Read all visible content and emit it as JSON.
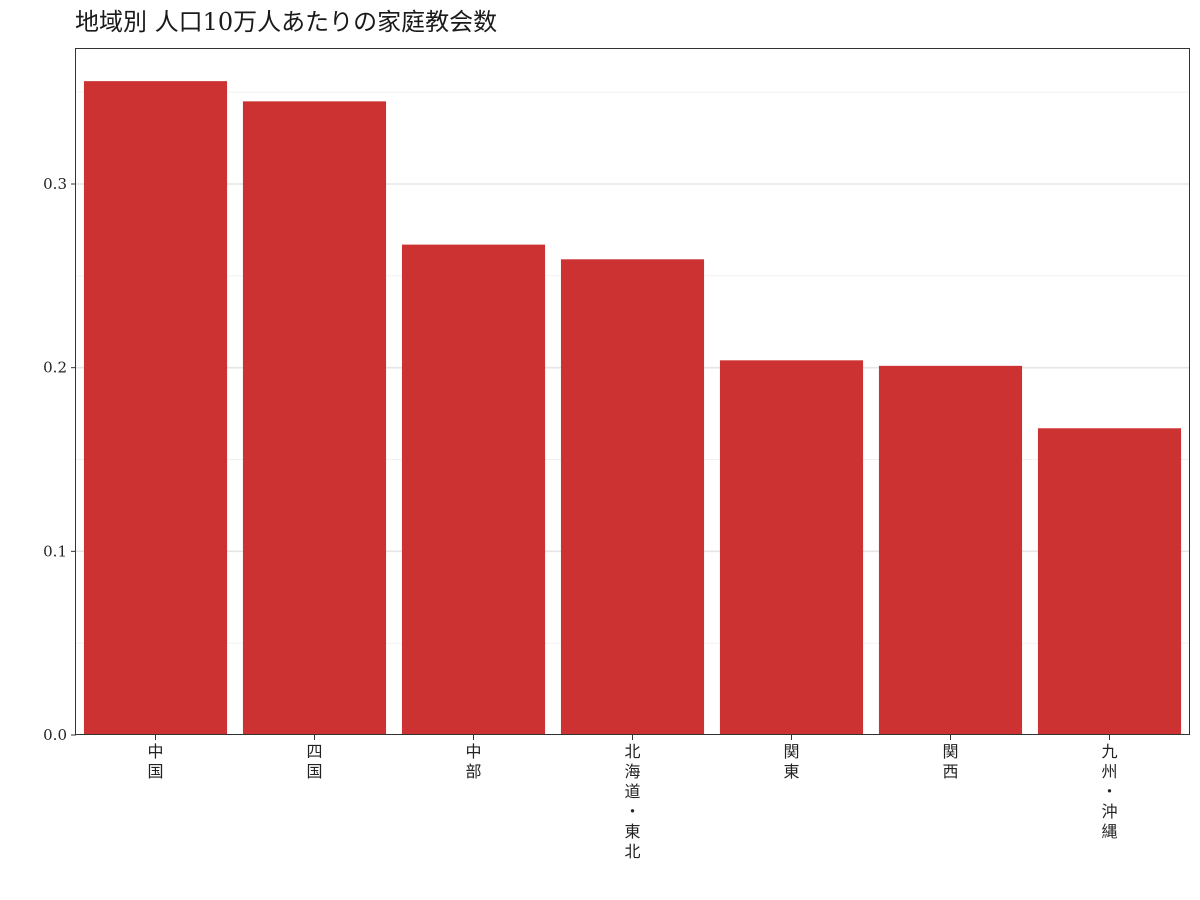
{
  "chart_data": {
    "type": "bar",
    "title": "地域別 人口10万人あたりの家庭教会数",
    "xlabel": "",
    "ylabel": "",
    "categories": [
      "中国",
      "四国",
      "中部",
      "北海道・東北",
      "関東",
      "関西",
      "九州・沖縄"
    ],
    "values": [
      0.356,
      0.345,
      0.267,
      0.259,
      0.204,
      0.201,
      0.167
    ],
    "ylim": [
      0,
      0.3735
    ],
    "yticks": [
      0.0,
      0.1,
      0.2,
      0.3
    ],
    "ytick_labels": [
      "0.0",
      "0.1",
      "0.2",
      "0.3"
    ],
    "grid": true,
    "bar_color": "#cd3233",
    "legend": "none"
  }
}
